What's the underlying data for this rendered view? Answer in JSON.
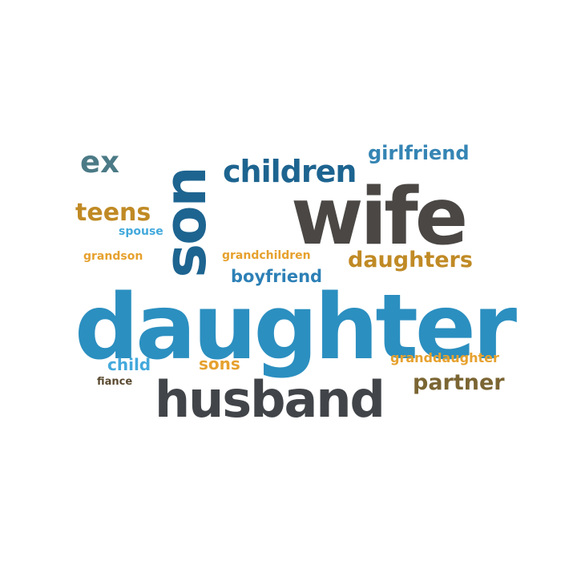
{
  "words": [
    {
      "text": "daughter",
      "color": "#2b8fc0"
    },
    {
      "text": "wife",
      "color": "#4a4744"
    },
    {
      "text": "husband",
      "color": "#414448"
    },
    {
      "text": "son",
      "color": "#1d6490"
    },
    {
      "text": "children",
      "color": "#1d6490"
    },
    {
      "text": "girlfriend",
      "color": "#3585b4"
    },
    {
      "text": "daughters",
      "color": "#c08a25"
    },
    {
      "text": "teens",
      "color": "#c08a25"
    },
    {
      "text": "ex",
      "color": "#4b7a86"
    },
    {
      "text": "spouse",
      "color": "#43a9dc"
    },
    {
      "text": "grandson",
      "color": "#e6a12e"
    },
    {
      "text": "grandchildren",
      "color": "#e6a12e"
    },
    {
      "text": "boyfriend",
      "color": "#2d80b6"
    },
    {
      "text": "child",
      "color": "#43a9dc"
    },
    {
      "text": "sons",
      "color": "#e6a12e"
    },
    {
      "text": "fiance",
      "color": "#5a4a30"
    },
    {
      "text": "granddaughter",
      "color": "#e6a12e"
    },
    {
      "text": "partner",
      "color": "#7b6533"
    }
  ]
}
